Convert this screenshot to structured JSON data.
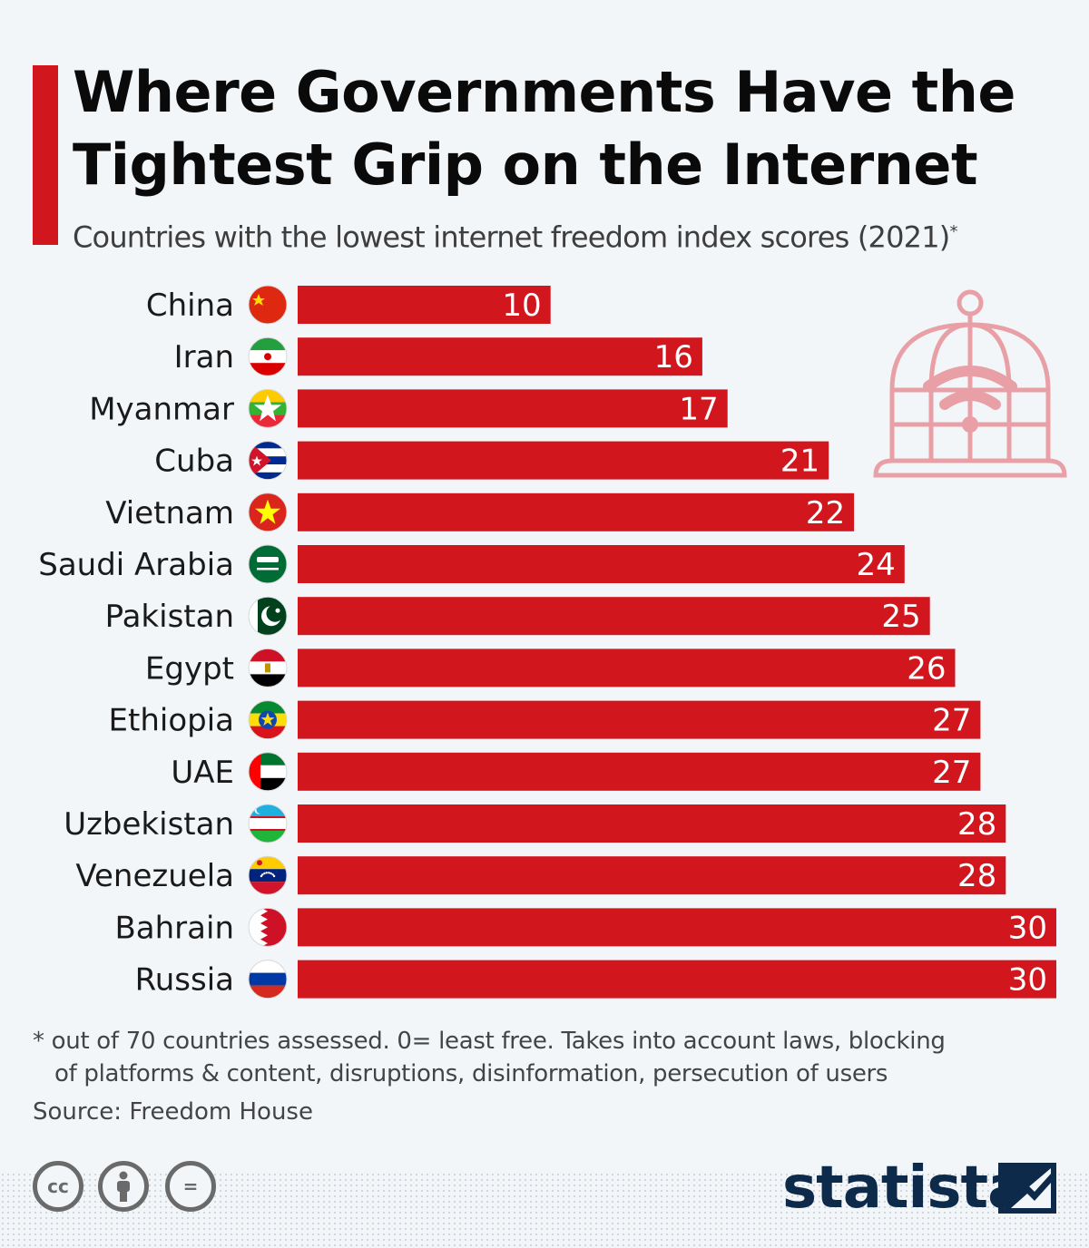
{
  "title": "Where Governments Have the Tightest Grip on the Internet",
  "subtitle": "Countries with the lowest internet freedom index scores (2021)",
  "subtitle_mark": "*",
  "footnote_line1": "* out of 70 countries assessed. 0= least free. Takes into account laws, blocking",
  "footnote_line2": "of platforms & content, disruptions, disinformation, persecution of users",
  "source": "Source: Freedom House",
  "license_icons": [
    "creative-commons-icon",
    "attribution-icon",
    "no-derivatives-icon"
  ],
  "license_labels": {
    "cc": "cc",
    "nd": "="
  },
  "brand": "statista",
  "colors": {
    "accent": "#d2161e",
    "bar": "#d2161e",
    "brand": "#0e2a4a",
    "cage": "#e8a0a6"
  },
  "chart_data": {
    "type": "bar",
    "orientation": "horizontal",
    "categories": [
      "China",
      "Iran",
      "Myanmar",
      "Cuba",
      "Vietnam",
      "Saudi Arabia",
      "Pakistan",
      "Egypt",
      "Ethiopia",
      "UAE",
      "Uzbekistan",
      "Venezuela",
      "Bahrain",
      "Russia"
    ],
    "values": [
      10,
      16,
      17,
      21,
      22,
      24,
      25,
      26,
      27,
      27,
      28,
      28,
      30,
      30
    ],
    "flag_icons": [
      "china-flag-icon",
      "iran-flag-icon",
      "myanmar-flag-icon",
      "cuba-flag-icon",
      "vietnam-flag-icon",
      "saudi-arabia-flag-icon",
      "pakistan-flag-icon",
      "egypt-flag-icon",
      "ethiopia-flag-icon",
      "uae-flag-icon",
      "uzbekistan-flag-icon",
      "venezuela-flag-icon",
      "bahrain-flag-icon",
      "russia-flag-icon"
    ],
    "xlim": [
      0,
      30
    ],
    "data_labels": true,
    "grid": false,
    "legend": "none"
  }
}
